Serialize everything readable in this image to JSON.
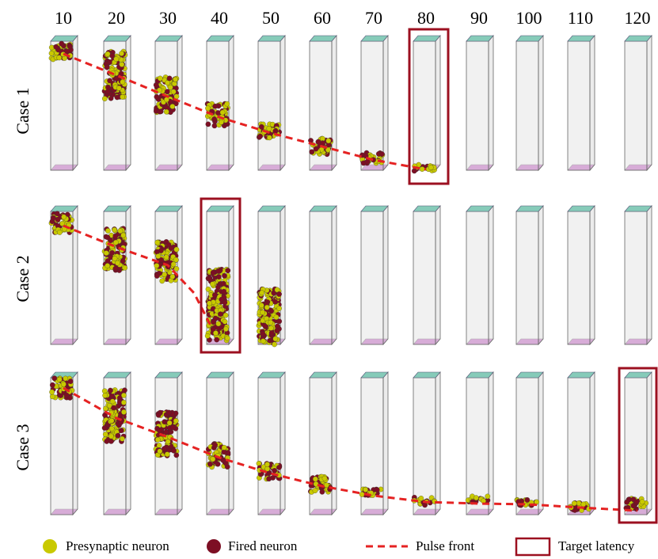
{
  "columns": [
    "10",
    "20",
    "30",
    "40",
    "50",
    "60",
    "70",
    "80",
    "90",
    "100",
    "110",
    "120"
  ],
  "rows": [
    "Case 1",
    "Case 2",
    "Case 3"
  ],
  "legend": {
    "presynaptic": "Presynaptic neuron",
    "fired": "Fired neuron",
    "pulse_front": "Pulse front",
    "target": "Target latency"
  }
}
